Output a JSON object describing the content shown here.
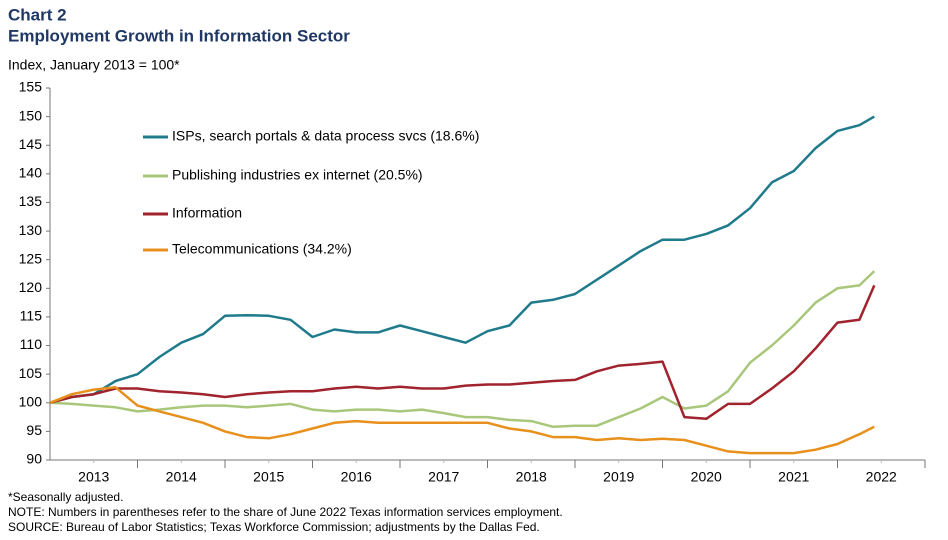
{
  "chart_data": {
    "type": "line",
    "title": "Chart 2",
    "subtitle": "Employment Growth in Information Sector",
    "y_axis_label": "Index, January 2013 = 100*",
    "notes": [
      "*Seasonally adjusted.",
      "NOTE: Numbers in parentheses refer to the share of June 2022 Texas information services employment.",
      "SOURCE: Bureau of Labor Statistics; Texas Workforce Commission; adjustments by the Dallas Fed."
    ],
    "x": [
      2013,
      2013.25,
      2013.5,
      2013.75,
      2014,
      2014.25,
      2014.5,
      2014.75,
      2015,
      2015.25,
      2015.5,
      2015.75,
      2016,
      2016.25,
      2016.5,
      2016.75,
      2017,
      2017.25,
      2017.5,
      2017.75,
      2018,
      2018.25,
      2018.5,
      2018.75,
      2019,
      2019.25,
      2019.5,
      2019.75,
      2020,
      2020.25,
      2020.5,
      2020.75,
      2021,
      2021.25,
      2021.5,
      2021.75,
      2022,
      2022.25,
      2022.42
    ],
    "xlim": [
      2013,
      2023
    ],
    "xticks": [
      {
        "value": 2013.5,
        "label": "2013"
      },
      {
        "value": 2014.5,
        "label": "2014"
      },
      {
        "value": 2015.5,
        "label": "2015"
      },
      {
        "value": 2016.5,
        "label": "2016"
      },
      {
        "value": 2017.5,
        "label": "2017"
      },
      {
        "value": 2018.5,
        "label": "2018"
      },
      {
        "value": 2019.5,
        "label": "2019"
      },
      {
        "value": 2020.5,
        "label": "2020"
      },
      {
        "value": 2021.5,
        "label": "2021"
      },
      {
        "value": 2022.5,
        "label": "2022"
      }
    ],
    "ylim": [
      90,
      155
    ],
    "yticks": [
      90,
      95,
      100,
      105,
      110,
      115,
      120,
      125,
      130,
      135,
      140,
      145,
      150,
      155
    ],
    "grid": false,
    "series": [
      {
        "name": "ISPs, search portals & data process svcs (18.6%)",
        "color": "#1f7b8c",
        "values": [
          100,
          101,
          101.5,
          103.8,
          105,
          108,
          110.5,
          112,
          115.2,
          115.3,
          115.2,
          114.5,
          111.5,
          112.8,
          112.3,
          112.3,
          113.5,
          112.5,
          111.5,
          110.5,
          112.5,
          113.5,
          117.5,
          118,
          119,
          121.5,
          124,
          126.5,
          128.5,
          128.5,
          129.5,
          131,
          134,
          138.5,
          140.5,
          144.5,
          147.5,
          148.5,
          150
        ]
      },
      {
        "name": "Publishing industries ex internet (20.5%)",
        "color": "#a9c77b",
        "values": [
          100,
          99.8,
          99.5,
          99.2,
          98.5,
          98.8,
          99.2,
          99.5,
          99.5,
          99.2,
          99.5,
          99.8,
          98.8,
          98.5,
          98.8,
          98.8,
          98.5,
          98.8,
          98.2,
          97.5,
          97.5,
          97,
          96.8,
          95.8,
          96,
          96,
          97.5,
          99,
          101,
          99,
          99.5,
          102,
          107,
          110,
          113.5,
          117.5,
          120,
          120.5,
          123
        ]
      },
      {
        "name": "Information",
        "color": "#a0232e",
        "values": [
          100,
          101,
          101.5,
          102.5,
          102.5,
          102,
          101.8,
          101.5,
          101,
          101.5,
          101.8,
          102,
          102,
          102.5,
          102.8,
          102.5,
          102.8,
          102.5,
          102.5,
          103,
          103.2,
          103.2,
          103.5,
          103.8,
          104,
          105.5,
          106.5,
          106.8,
          107.2,
          97.5,
          97.2,
          99.8,
          99.8,
          102.5,
          105.5,
          109.5,
          114,
          114.5,
          120.5
        ]
      },
      {
        "name": "Telecommunications (34.2%)",
        "color": "#e8901c",
        "values": [
          100,
          101.5,
          102.3,
          102.7,
          99.5,
          98.5,
          97.5,
          96.5,
          95,
          94,
          93.8,
          94.5,
          95.5,
          96.5,
          96.8,
          96.5,
          96.5,
          96.5,
          96.5,
          96.5,
          96.5,
          95.5,
          95,
          94,
          94,
          93.5,
          93.8,
          93.5,
          93.7,
          93.5,
          92.5,
          91.5,
          91.2,
          91.2,
          91.2,
          91.8,
          92.8,
          94.5,
          95.8
        ]
      }
    ]
  }
}
